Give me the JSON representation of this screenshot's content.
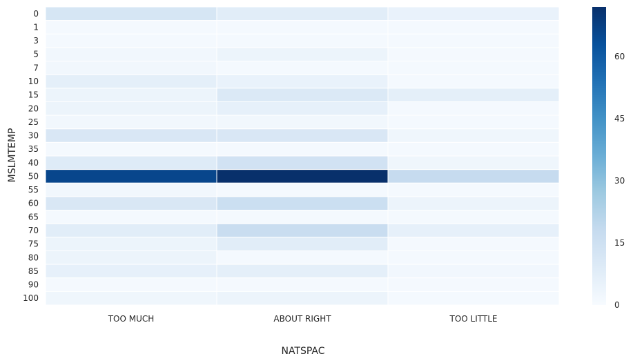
{
  "chart_data": {
    "type": "heatmap",
    "xlabel": "NATSPAC",
    "ylabel": "MSLMTEMP",
    "x_categories": [
      "TOO MUCH",
      "ABOUT RIGHT",
      "TOO LITTLE"
    ],
    "y_categories": [
      "0",
      "1",
      "3",
      "5",
      "7",
      "10",
      "15",
      "20",
      "25",
      "30",
      "35",
      "40",
      "50",
      "55",
      "60",
      "65",
      "70",
      "75",
      "80",
      "85",
      "90",
      "100"
    ],
    "values": [
      [
        12,
        8,
        5
      ],
      [
        1,
        1,
        1
      ],
      [
        1,
        1,
        1
      ],
      [
        2,
        4,
        1
      ],
      [
        2,
        1,
        1
      ],
      [
        7,
        5,
        1
      ],
      [
        4,
        10,
        7
      ],
      [
        4,
        6,
        1
      ],
      [
        2,
        2,
        1
      ],
      [
        11,
        11,
        3
      ],
      [
        1,
        1,
        1
      ],
      [
        9,
        14,
        3
      ],
      [
        66,
        72,
        18
      ],
      [
        2,
        1,
        1
      ],
      [
        11,
        16,
        4
      ],
      [
        1,
        1,
        1
      ],
      [
        8,
        17,
        6
      ],
      [
        4,
        8,
        1
      ],
      [
        4,
        1,
        1
      ],
      [
        6,
        7,
        2
      ],
      [
        1,
        1,
        1
      ],
      [
        3,
        4,
        1
      ]
    ],
    "colorbar": {
      "min": 0,
      "max": 72,
      "ticks": [
        0,
        15,
        30,
        45,
        60
      ],
      "colormap": "Blues",
      "low_color": "#f7fbff",
      "high_color": "#08306b"
    },
    "cell_separator_color": "#ffffff"
  }
}
